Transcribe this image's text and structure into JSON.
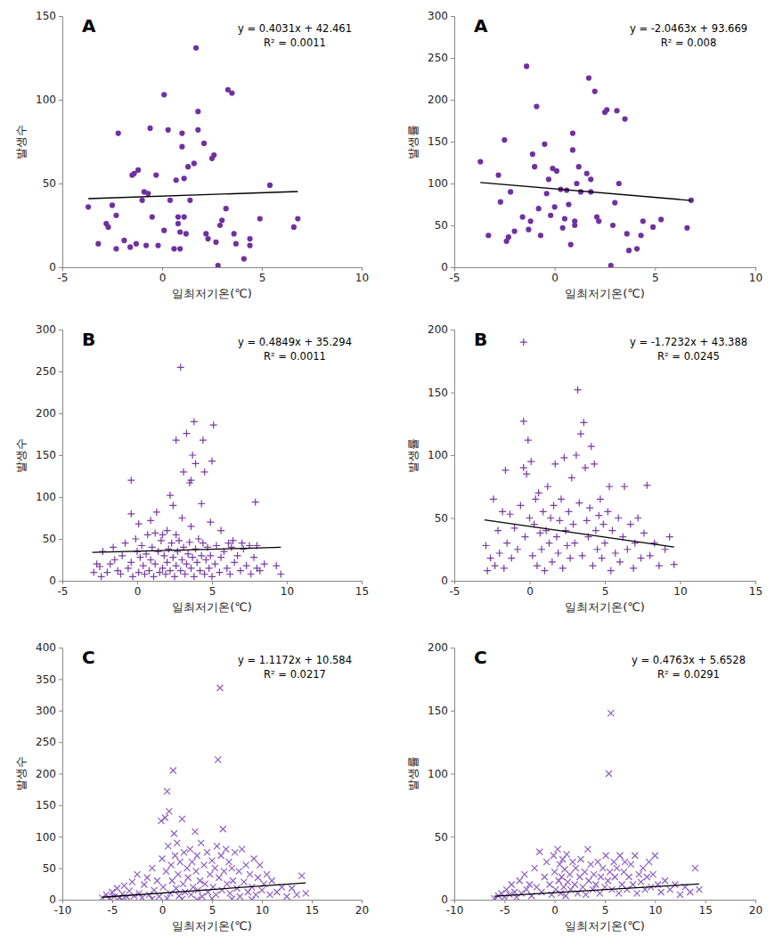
{
  "chart_data": [
    {
      "type": "scatter",
      "title": "A",
      "x_label": "일최저기온(℃)",
      "y_label": "발생수",
      "marker": "circle",
      "color": "#7030a0",
      "xlim": [
        -5,
        10
      ],
      "xticks": [
        -5,
        0,
        5,
        10
      ],
      "ylim": [
        0,
        150
      ],
      "yticks": [
        0,
        50,
        100,
        150
      ],
      "annotations": [
        "y = 0.4031x + 42.461",
        "R² = 0.0011"
      ],
      "trendline": {
        "x": [
          -3.7,
          6.8
        ],
        "slope": 0.4031,
        "intercept": 42.461
      },
      "x": [
        -3.7,
        -3.2,
        -2.8,
        -2.7,
        -2.5,
        -2.3,
        -2.3,
        -2.2,
        -1.9,
        -1.6,
        -1.5,
        -1.4,
        -1.3,
        -1.2,
        -1.0,
        -0.9,
        -0.8,
        -0.7,
        -0.6,
        -0.5,
        -0.3,
        -0.2,
        0.1,
        0.1,
        0.3,
        0.4,
        0.6,
        0.7,
        0.8,
        0.8,
        0.9,
        0.9,
        1.0,
        1.0,
        1.1,
        1.1,
        1.2,
        1.3,
        1.4,
        1.6,
        1.7,
        1.8,
        1.8,
        2.1,
        2.2,
        2.3,
        2.5,
        2.6,
        2.7,
        2.8,
        2.9,
        3.0,
        3.2,
        3.3,
        3.5,
        3.6,
        3.7,
        4.1,
        4.4,
        4.4,
        4.9,
        5.4,
        6.6,
        6.8
      ],
      "values": [
        36,
        14,
        26,
        24,
        37,
        11,
        31,
        80,
        16,
        12,
        55,
        56,
        14,
        58,
        40,
        45,
        13,
        44,
        83,
        30,
        55,
        13,
        103,
        22,
        82,
        40,
        11,
        52,
        30,
        26,
        21,
        11,
        80,
        72,
        53,
        30,
        20,
        60,
        40,
        62,
        131,
        93,
        82,
        74,
        20,
        17,
        65,
        67,
        15,
        1,
        25,
        28,
        35,
        106,
        104,
        20,
        14,
        5,
        17,
        13,
        29,
        49,
        24,
        29
      ]
    },
    {
      "type": "scatter",
      "title": "A",
      "x_label": "일최저기온(℃)",
      "y_label": "발생률",
      "marker": "circle",
      "color": "#7030a0",
      "xlim": [
        -5,
        10
      ],
      "xticks": [
        -5,
        0,
        5,
        10
      ],
      "ylim": [
        0,
        300
      ],
      "yticks": [
        0,
        50,
        100,
        150,
        200,
        250,
        300
      ],
      "annotations": [
        "y = -2.0463x + 93.669",
        "R² = 0.008"
      ],
      "trendline": {
        "x": [
          -3.7,
          6.8
        ],
        "slope": -2.0463,
        "intercept": 93.669
      },
      "x": [
        -3.7,
        -3.3,
        -2.8,
        -2.7,
        -2.5,
        -2.4,
        -2.3,
        -2.2,
        -2.0,
        -1.6,
        -1.4,
        -1.3,
        -1.2,
        -1.1,
        -1.0,
        -0.9,
        -0.8,
        -0.7,
        -0.5,
        -0.4,
        -0.3,
        -0.2,
        -0.1,
        0.0,
        0.1,
        0.3,
        0.4,
        0.5,
        0.6,
        0.7,
        0.8,
        0.9,
        0.9,
        1.0,
        1.0,
        1.1,
        1.2,
        1.3,
        1.6,
        1.7,
        1.8,
        1.8,
        2.0,
        2.1,
        2.2,
        2.5,
        2.6,
        2.8,
        2.9,
        3.0,
        3.1,
        3.2,
        3.5,
        3.6,
        3.7,
        4.1,
        4.3,
        4.4,
        4.9,
        5.3,
        6.6,
        6.8
      ],
      "values": [
        126,
        38,
        110,
        78,
        152,
        31,
        36,
        90,
        43,
        60,
        240,
        45,
        55,
        135,
        120,
        192,
        70,
        38,
        147,
        88,
        105,
        62,
        118,
        72,
        115,
        93,
        47,
        58,
        92,
        75,
        27,
        160,
        140,
        55,
        50,
        100,
        120,
        90,
        112,
        226,
        105,
        90,
        210,
        60,
        55,
        185,
        188,
        2,
        50,
        77,
        187,
        100,
        177,
        40,
        20,
        22,
        38,
        55,
        48,
        57,
        47,
        80
      ]
    },
    {
      "type": "scatter",
      "title": "B",
      "x_label": "일최저기온(℃)",
      "y_label": "발생수",
      "marker": "plus",
      "color": "#7a3aa5",
      "xlim": [
        -5,
        15
      ],
      "xticks": [
        -5,
        0,
        5,
        10,
        15
      ],
      "ylim": [
        0,
        300
      ],
      "yticks": [
        0,
        50,
        100,
        150,
        200,
        250,
        300
      ],
      "annotations": [
        "y = 0.4849x + 35.294",
        "R² = 0.0011"
      ],
      "trendline": {
        "x": [
          -3.0,
          9.6
        ],
        "slope": 0.4849,
        "intercept": 35.294
      },
      "x": [
        2.9,
        3.8,
        3.3,
        2.6,
        5.1,
        4.4,
        3.7,
        3.9,
        5.0,
        4.5,
        3.1,
        3.5,
        3.6,
        -0.4,
        2.2,
        7.9,
        2.4,
        4.3,
        1.3,
        -0.4,
        3.0,
        0.9,
        4.9,
        0.1,
        3.6,
        5.6,
        2.0,
        1.7,
        1.2,
        2.6,
        6.1,
        7.0,
        8.0,
        6.4,
        -2.9,
        -2.7,
        -2.5,
        -2.4,
        -2.3,
        -2.0,
        -1.8,
        -1.6,
        -1.5,
        -1.3,
        -1.1,
        -1.0,
        -0.8,
        -0.6,
        -0.4,
        -0.3,
        -0.1,
        0.0,
        0.1,
        0.2,
        0.3,
        0.4,
        0.5,
        0.6,
        0.7,
        0.8,
        0.9,
        1.0,
        1.1,
        1.2,
        1.4,
        1.5,
        1.6,
        1.7,
        1.8,
        1.9,
        2.0,
        2.1,
        2.2,
        2.3,
        2.4,
        2.5,
        2.6,
        2.7,
        2.8,
        2.9,
        3.0,
        3.1,
        3.2,
        3.3,
        3.4,
        3.5,
        3.6,
        3.7,
        3.8,
        3.9,
        4.0,
        4.1,
        4.2,
        4.3,
        4.4,
        4.5,
        4.6,
        4.7,
        4.8,
        4.9,
        5.0,
        5.2,
        5.3,
        5.5,
        5.6,
        5.8,
        6.0,
        6.2,
        6.3,
        6.5,
        6.7,
        6.9,
        7.1,
        7.3,
        7.5,
        7.6,
        7.8,
        8.0,
        8.2,
        8.5,
        9.3,
        9.6
      ],
      "values": [
        255,
        190,
        176,
        168,
        186,
        168,
        150,
        140,
        143,
        130,
        130,
        117,
        120,
        120,
        102,
        94,
        90,
        92,
        82,
        80,
        75,
        72,
        70,
        68,
        65,
        60,
        60,
        55,
        57,
        55,
        45,
        45,
        42,
        48,
        10,
        20,
        17,
        5,
        35,
        10,
        20,
        40,
        25,
        12,
        8,
        30,
        45,
        15,
        22,
        5,
        50,
        35,
        10,
        28,
        42,
        18,
        8,
        32,
        55,
        12,
        25,
        40,
        5,
        20,
        35,
        10,
        48,
        15,
        30,
        8,
        22,
        38,
        12,
        45,
        28,
        5,
        18,
        35,
        48,
        12,
        25,
        40,
        8,
        20,
        32,
        46,
        15,
        28,
        5,
        38,
        22,
        50,
        12,
        30,
        45,
        8,
        25,
        40,
        15,
        30,
        5,
        20,
        42,
        10,
        28,
        35,
        15,
        8,
        40,
        22,
        30,
        12,
        38,
        18,
        42,
        8,
        28,
        15,
        12,
        20,
        18,
        8
      ]
    },
    {
      "type": "scatter",
      "title": "B",
      "x_label": "일최저기온(℃)",
      "y_label": "발생률",
      "marker": "plus",
      "color": "#7a3aa5",
      "xlim": [
        -5,
        15
      ],
      "xticks": [
        -5,
        0,
        5,
        10,
        15
      ],
      "ylim": [
        0,
        200
      ],
      "yticks": [
        0,
        50,
        100,
        150,
        200
      ],
      "annotations": [
        "y = -1.7232x + 43.388",
        "R² = 0.0245"
      ],
      "trendline": {
        "x": [
          -3.0,
          9.6
        ],
        "slope": -1.7232,
        "intercept": 43.388
      },
      "x": [
        -2.9,
        -2.8,
        -2.6,
        -2.4,
        -2.3,
        -2.1,
        -2.0,
        -1.8,
        -1.7,
        -1.6,
        -1.5,
        -1.3,
        -1.2,
        -1.0,
        -0.8,
        -0.6,
        -0.4,
        -0.4,
        -0.4,
        -0.3,
        -0.2,
        -0.1,
        0.0,
        0.1,
        0.2,
        0.3,
        0.4,
        0.5,
        0.6,
        0.7,
        0.8,
        0.9,
        1.0,
        1.1,
        1.2,
        1.3,
        1.4,
        1.5,
        1.6,
        1.7,
        1.8,
        1.9,
        2.0,
        2.1,
        2.2,
        2.3,
        2.4,
        2.5,
        2.6,
        2.7,
        2.8,
        2.9,
        3.0,
        3.1,
        3.2,
        3.3,
        3.4,
        3.5,
        3.6,
        3.7,
        3.8,
        3.9,
        4.0,
        4.1,
        4.2,
        4.3,
        4.4,
        4.5,
        4.6,
        4.7,
        4.8,
        4.9,
        5.0,
        5.2,
        5.3,
        5.4,
        5.5,
        5.7,
        5.9,
        6.0,
        6.2,
        6.3,
        6.5,
        6.7,
        6.9,
        7.0,
        7.2,
        7.4,
        7.6,
        7.8,
        8.0,
        8.3,
        8.6,
        9.0,
        9.3,
        9.6
      ],
      "values": [
        28,
        8,
        18,
        65,
        12,
        40,
        22,
        55,
        10,
        88,
        30,
        53,
        18,
        42,
        25,
        60,
        190,
        127,
        90,
        35,
        85,
        112,
        50,
        95,
        20,
        45,
        65,
        12,
        70,
        38,
        25,
        55,
        8,
        40,
        75,
        30,
        50,
        15,
        60,
        93,
        35,
        22,
        48,
        65,
        10,
        98,
        40,
        28,
        55,
        18,
        82,
        45,
        30,
        100,
        152,
        62,
        117,
        20,
        126,
        90,
        48,
        35,
        58,
        107,
        12,
        93,
        40,
        25,
        52,
        65,
        18,
        45,
        30,
        55,
        75,
        8,
        40,
        22,
        50,
        15,
        35,
        75,
        25,
        45,
        10,
        30,
        50,
        18,
        38,
        76,
        20,
        30,
        12,
        25,
        35,
        13
      ]
    },
    {
      "type": "scatter",
      "title": "C",
      "x_label": "일최저기온(℃)",
      "y_label": "발생수",
      "marker": "cross",
      "color": "#8e5cc0",
      "xlim": [
        -10,
        20
      ],
      "xticks": [
        -10,
        -5,
        0,
        5,
        10,
        15,
        20
      ],
      "ylim": [
        0,
        400
      ],
      "yticks": [
        0,
        50,
        100,
        150,
        200,
        250,
        300,
        350,
        400
      ],
      "annotations": [
        "y = 1.1172x + 10.584",
        "R² = 0.0217"
      ],
      "trendline": {
        "x": [
          -6.0,
          14.4
        ],
        "slope": 1.1172,
        "intercept": 10.584
      },
      "x": [
        -6.0,
        -5.6,
        -5.3,
        -5.0,
        -4.8,
        -4.5,
        -4.3,
        -4.0,
        -3.8,
        -3.5,
        -3.3,
        -3.0,
        -2.8,
        -2.5,
        -2.3,
        -2.0,
        -1.8,
        -1.5,
        -1.3,
        -1.0,
        -0.8,
        -0.5,
        -0.3,
        -0.1,
        0.0,
        0.1,
        0.3,
        0.4,
        0.5,
        0.6,
        0.7,
        0.8,
        0.9,
        1.0,
        1.1,
        1.2,
        1.3,
        1.4,
        1.5,
        1.6,
        1.7,
        1.8,
        2.0,
        2.1,
        2.2,
        2.3,
        2.5,
        2.6,
        2.8,
        2.9,
        3.0,
        3.1,
        3.3,
        3.4,
        3.5,
        3.6,
        3.8,
        3.9,
        4.0,
        4.2,
        4.3,
        4.5,
        4.6,
        4.8,
        5.0,
        5.1,
        5.3,
        5.4,
        5.5,
        5.6,
        5.7,
        5.8,
        5.9,
        6.0,
        6.1,
        6.2,
        6.4,
        6.5,
        6.7,
        6.8,
        7.0,
        7.1,
        7.3,
        7.5,
        7.7,
        7.8,
        8.0,
        8.2,
        8.4,
        8.6,
        8.8,
        9.0,
        9.2,
        9.4,
        9.6,
        9.8,
        10.0,
        10.2,
        10.5,
        10.8,
        11.0,
        11.5,
        12.0,
        12.5,
        13.0,
        13.5,
        14.0,
        14.4,
        -4.0,
        -1.0,
        0.5,
        2.0,
        3.5,
        5.0,
        7.0,
        9.0
      ],
      "values": [
        3,
        8,
        2,
        12,
        5,
        18,
        3,
        9,
        22,
        4,
        14,
        28,
        6,
        40,
        10,
        3,
        24,
        35,
        8,
        50,
        15,
        30,
        5,
        125,
        65,
        20,
        130,
        45,
        172,
        85,
        140,
        10,
        55,
        30,
        205,
        105,
        70,
        18,
        90,
        40,
        6,
        60,
        128,
        25,
        75,
        12,
        50,
        35,
        80,
        8,
        60,
        20,
        108,
        45,
        70,
        15,
        30,
        90,
        5,
        55,
        25,
        75,
        12,
        40,
        62,
        20,
        50,
        8,
        85,
        222,
        35,
        336,
        70,
        15,
        112,
        45,
        80,
        25,
        60,
        10,
        50,
        30,
        75,
        18,
        45,
        5,
        80,
        28,
        55,
        12,
        40,
        20,
        65,
        8,
        35,
        55,
        15,
        25,
        40,
        8,
        30,
        12,
        20,
        5,
        18,
        8,
        38,
        10,
        0,
        1,
        2,
        1,
        0,
        2,
        1,
        0
      ]
    },
    {
      "type": "scatter",
      "title": "C",
      "x_label": "일최저기온(℃)",
      "y_label": "발생률",
      "marker": "cross",
      "color": "#8e5cc0",
      "xlim": [
        -10,
        20
      ],
      "xticks": [
        -10,
        -5,
        0,
        5,
        10,
        15,
        20
      ],
      "ylim": [
        0,
        200
      ],
      "yticks": [
        0,
        50,
        100,
        150,
        200
      ],
      "annotations": [
        "y = 0.4763x + 5.6528",
        "R² = 0.0291"
      ],
      "trendline": {
        "x": [
          -6.0,
          14.4
        ],
        "slope": 0.4763,
        "intercept": 5.6528
      },
      "x": [
        -6.0,
        -5.6,
        -5.3,
        -5.0,
        -4.8,
        -4.5,
        -4.3,
        -4.0,
        -3.8,
        -3.5,
        -3.3,
        -3.0,
        -2.8,
        -2.5,
        -2.3,
        -2.0,
        -1.8,
        -1.5,
        -1.3,
        -1.0,
        -0.8,
        -0.5,
        -0.3,
        -0.1,
        0.0,
        0.1,
        0.3,
        0.4,
        0.5,
        0.6,
        0.7,
        0.8,
        0.9,
        1.0,
        1.1,
        1.2,
        1.3,
        1.5,
        1.6,
        1.8,
        2.0,
        2.1,
        2.3,
        2.5,
        2.6,
        2.8,
        3.0,
        3.1,
        3.3,
        3.4,
        3.6,
        3.8,
        3.9,
        4.1,
        4.3,
        4.5,
        4.6,
        4.8,
        5.0,
        5.1,
        5.3,
        5.4,
        5.5,
        5.6,
        5.7,
        5.9,
        6.0,
        6.2,
        6.4,
        6.5,
        6.7,
        6.9,
        7.0,
        7.2,
        7.4,
        7.6,
        7.8,
        8.0,
        8.2,
        8.4,
        8.6,
        8.8,
        9.0,
        9.2,
        9.4,
        9.6,
        9.8,
        10.0,
        10.3,
        10.6,
        11.0,
        11.5,
        12.0,
        12.5,
        13.0,
        13.5,
        14.0,
        14.4
      ],
      "values": [
        1,
        3,
        5,
        2,
        8,
        4,
        12,
        6,
        2,
        15,
        5,
        20,
        8,
        12,
        3,
        25,
        10,
        38,
        6,
        18,
        30,
        12,
        4,
        35,
        22,
        8,
        40,
        15,
        28,
        5,
        18,
        32,
        10,
        24,
        3,
        36,
        14,
        20,
        8,
        30,
        12,
        25,
        5,
        18,
        32,
        10,
        22,
        4,
        40,
        15,
        28,
        8,
        20,
        12,
        30,
        5,
        18,
        25,
        10,
        35,
        15,
        100,
        22,
        148,
        8,
        30,
        18,
        25,
        5,
        35,
        12,
        22,
        30,
        8,
        18,
        28,
        12,
        35,
        5,
        20,
        14,
        25,
        8,
        18,
        30,
        10,
        20,
        35,
        12,
        6,
        15,
        8,
        12,
        4,
        10,
        6,
        25,
        8
      ]
    }
  ]
}
